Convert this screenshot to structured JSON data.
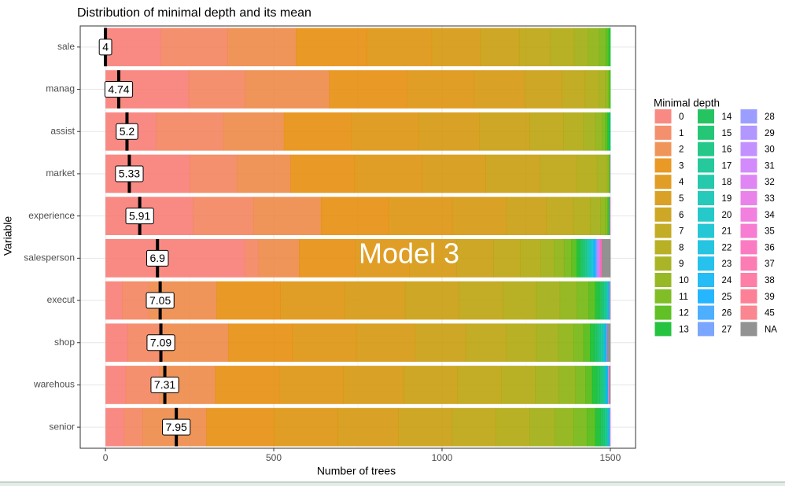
{
  "chart_data": {
    "type": "stacked-bar-horizontal",
    "title": "Distribution of minimal depth and its mean",
    "x_label": "Number of trees",
    "y_label": "Variable",
    "legend_title": "Minimal depth",
    "annotation": "Model 3",
    "categories": [
      "sale",
      "manag",
      "assist",
      "market",
      "experience",
      "salesperson",
      "execut",
      "shop",
      "warehous",
      "senior"
    ],
    "mean_values": [
      4,
      4.74,
      5.2,
      5.33,
      5.91,
      6.9,
      7.05,
      7.09,
      7.31,
      7.95
    ],
    "xlim": [
      -75,
      1575
    ],
    "xticks": [
      0,
      500,
      1000,
      1500
    ],
    "grid": true,
    "series": [
      {
        "name": "0",
        "color": "#F8766D",
        "values": [
          165,
          247,
          150,
          250,
          260,
          415,
          50,
          65,
          60,
          55
        ]
      },
      {
        "name": "1",
        "color": "#F27D53",
        "values": [
          198,
          168,
          200,
          140,
          180,
          40,
          80,
          110,
          100,
          55
        ]
      },
      {
        "name": "2",
        "color": "#EC823C",
        "values": [
          203,
          250,
          180,
          160,
          200,
          120,
          200,
          190,
          166,
          190
        ]
      },
      {
        "name": "3",
        "color": "#E58700",
        "values": [
          210,
          230,
          200,
          190,
          200,
          167,
          190,
          190,
          190,
          200
        ]
      },
      {
        "name": "4",
        "color": "#DC8D00",
        "values": [
          193,
          200,
          200,
          200,
          190,
          160,
          190,
          190,
          190,
          190
        ]
      },
      {
        "name": "5",
        "color": "#D29200",
        "values": [
          144,
          150,
          180,
          190,
          160,
          140,
          180,
          175,
          180,
          180
        ]
      },
      {
        "name": "6",
        "color": "#C69800",
        "values": [
          116,
          110,
          150,
          160,
          120,
          110,
          160,
          150,
          160,
          160
        ]
      },
      {
        "name": "7",
        "color": "#B99D00",
        "values": [
          93,
          70,
          100,
          110,
          80,
          80,
          130,
          120,
          130,
          130
        ]
      },
      {
        "name": "8",
        "color": "#ABA300",
        "values": [
          70,
          40,
          60,
          60,
          50,
          60,
          100,
          90,
          100,
          100
        ]
      },
      {
        "name": "9",
        "color": "#9AA800",
        "values": [
          42,
          20,
          35,
          30,
          30,
          40,
          70,
          65,
          70,
          75
        ]
      },
      {
        "name": "10",
        "color": "#85AD00",
        "values": [
          33,
          8,
          20,
          5,
          15,
          30,
          50,
          45,
          50,
          55
        ]
      },
      {
        "name": "11",
        "color": "#6BB100",
        "values": [
          19,
          4,
          10,
          2,
          7,
          22,
          35,
          30,
          30,
          40
        ]
      },
      {
        "name": "12",
        "color": "#44B500",
        "values": [
          9,
          2,
          7,
          1,
          3,
          16,
          20,
          20,
          20,
          25
        ]
      },
      {
        "name": "13",
        "color": "#00B81F",
        "values": [
          5,
          1,
          4,
          1,
          1,
          10,
          12,
          12,
          14,
          15
        ]
      },
      {
        "name": "14",
        "color": "#00BA45",
        "values": [
          0,
          0,
          2,
          0,
          1,
          8,
          8,
          8,
          9,
          8
        ]
      },
      {
        "name": "15",
        "color": "#00BC5F",
        "values": [
          0,
          0,
          1,
          0,
          1,
          6,
          5,
          6,
          6,
          5
        ]
      },
      {
        "name": "16",
        "color": "#00BE76",
        "values": [
          0,
          0,
          1,
          0,
          0,
          5,
          4,
          5,
          4,
          4
        ]
      },
      {
        "name": "17",
        "color": "#00BF8A",
        "values": [
          0,
          0,
          0,
          0,
          0,
          4,
          3,
          4,
          3,
          3
        ]
      },
      {
        "name": "18",
        "color": "#00C09C",
        "values": [
          0,
          0,
          0,
          0,
          0,
          4,
          2,
          3,
          2,
          2
        ]
      },
      {
        "name": "19",
        "color": "#00C0AE",
        "values": [
          0,
          0,
          0,
          0,
          0,
          3,
          2,
          2,
          2,
          1
        ]
      },
      {
        "name": "20",
        "color": "#00BFBF",
        "values": [
          0,
          0,
          0,
          0,
          0,
          3,
          2,
          2,
          1,
          1
        ]
      },
      {
        "name": "21",
        "color": "#00BDCE",
        "values": [
          0,
          0,
          0,
          0,
          0,
          3,
          1,
          1,
          1,
          1
        ]
      },
      {
        "name": "22",
        "color": "#00BADC",
        "values": [
          0,
          0,
          0,
          0,
          0,
          3,
          1,
          1,
          1,
          1
        ]
      },
      {
        "name": "23",
        "color": "#00B6E9",
        "values": [
          0,
          0,
          0,
          0,
          0,
          2,
          1,
          1,
          1,
          1
        ]
      },
      {
        "name": "24",
        "color": "#00B0F5",
        "values": [
          0,
          0,
          0,
          0,
          0,
          2,
          1,
          1,
          1,
          1
        ]
      },
      {
        "name": "25",
        "color": "#00A9FF",
        "values": [
          0,
          0,
          0,
          0,
          0,
          2,
          0,
          1,
          1,
          0
        ]
      },
      {
        "name": "26",
        "color": "#2FA0FF",
        "values": [
          0,
          0,
          0,
          0,
          0,
          2,
          0,
          1,
          1,
          0
        ]
      },
      {
        "name": "27",
        "color": "#6496FF",
        "values": [
          0,
          0,
          0,
          0,
          0,
          2,
          0,
          1,
          0,
          0
        ]
      },
      {
        "name": "28",
        "color": "#8A8DFF",
        "values": [
          0,
          0,
          0,
          0,
          0,
          2,
          0,
          1,
          0,
          0
        ]
      },
      {
        "name": "29",
        "color": "#A585FF",
        "values": [
          0,
          0,
          0,
          0,
          0,
          2,
          0,
          1,
          0,
          0
        ]
      },
      {
        "name": "30",
        "color": "#B97EFF",
        "values": [
          0,
          0,
          0,
          1,
          0,
          2,
          0,
          0,
          0,
          0
        ]
      },
      {
        "name": "31",
        "color": "#CB77FA",
        "values": [
          0,
          0,
          0,
          0,
          0,
          2,
          0,
          0,
          0,
          0
        ]
      },
      {
        "name": "32",
        "color": "#DA71F2",
        "values": [
          0,
          0,
          0,
          0,
          0,
          1,
          1,
          0,
          0,
          1
        ]
      },
      {
        "name": "33",
        "color": "#E56DE6",
        "values": [
          0,
          0,
          0,
          0,
          1,
          1,
          1,
          0,
          3,
          1
        ]
      },
      {
        "name": "34",
        "color": "#EE6AD9",
        "values": [
          0,
          0,
          0,
          0,
          1,
          1,
          0,
          0,
          0,
          0
        ]
      },
      {
        "name": "35",
        "color": "#F566C9",
        "values": [
          0,
          0,
          0,
          0,
          0,
          1,
          0,
          0,
          0,
          0
        ]
      },
      {
        "name": "36",
        "color": "#FA64B9",
        "values": [
          0,
          0,
          0,
          0,
          0,
          1,
          0,
          0,
          0,
          0
        ]
      },
      {
        "name": "37",
        "color": "#FC65A7",
        "values": [
          0,
          0,
          0,
          0,
          0,
          1,
          0,
          0,
          0,
          0
        ]
      },
      {
        "name": "38",
        "color": "#FD6796",
        "values": [
          0,
          0,
          0,
          0,
          0,
          1,
          0,
          0,
          0,
          0
        ]
      },
      {
        "name": "39",
        "color": "#FB6B85",
        "values": [
          0,
          0,
          0,
          0,
          0,
          1,
          0,
          0,
          0,
          0
        ]
      },
      {
        "name": "45",
        "color": "#F9717E",
        "values": [
          0,
          0,
          0,
          0,
          0,
          0,
          0,
          0,
          0,
          0
        ]
      },
      {
        "name": "NA",
        "color": "#7F7F7F",
        "values": [
          0,
          0,
          0,
          0,
          0,
          25,
          1,
          9,
          4,
          0
        ]
      }
    ]
  }
}
